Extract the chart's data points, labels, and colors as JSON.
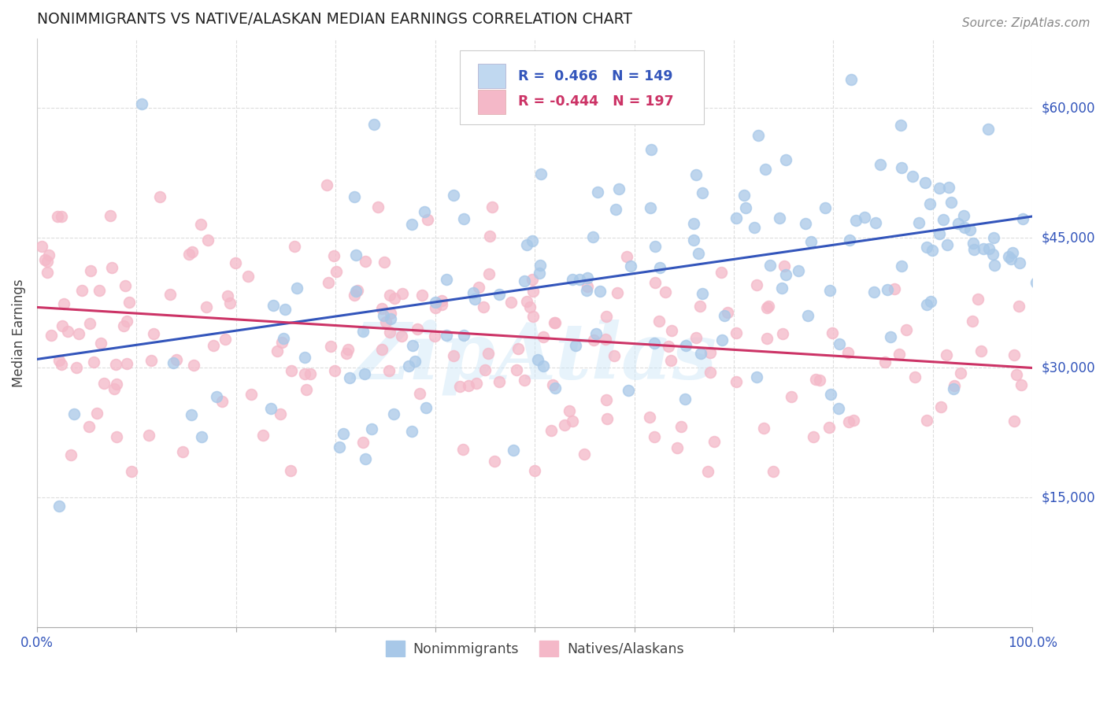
{
  "title": "NONIMMIGRANTS VS NATIVE/ALASKAN MEDIAN EARNINGS CORRELATION CHART",
  "source": "Source: ZipAtlas.com",
  "ylabel": "Median Earnings",
  "xlim": [
    0.0,
    1.0
  ],
  "ylim": [
    0,
    68000
  ],
  "yticks": [
    15000,
    30000,
    45000,
    60000
  ],
  "ytick_labels": [
    "$15,000",
    "$30,000",
    "$45,000",
    "$60,000"
  ],
  "xticks": [
    0.0,
    0.1,
    0.2,
    0.3,
    0.4,
    0.5,
    0.6,
    0.7,
    0.8,
    0.9,
    1.0
  ],
  "xtick_labels": [
    "0.0%",
    "",
    "",
    "",
    "",
    "",
    "",
    "",
    "",
    "",
    "100.0%"
  ],
  "blue_color": "#a8c8e8",
  "pink_color": "#f4b8c8",
  "blue_line_color": "#3355bb",
  "pink_line_color": "#cc3366",
  "title_color": "#222222",
  "axis_label_color": "#444444",
  "tick_color": "#3355bb",
  "legend_box_blue": "#c0d8f0",
  "legend_box_pink": "#f4b8c8",
  "watermark": "ZipAtlas",
  "background_color": "#ffffff",
  "grid_color": "#dddddd",
  "blue_R": 0.466,
  "blue_N": 149,
  "pink_R": -0.444,
  "pink_N": 197,
  "blue_line_x0": 0.0,
  "blue_line_y0": 31000,
  "blue_line_x1": 1.0,
  "blue_line_y1": 47500,
  "pink_line_x0": 0.0,
  "pink_line_y0": 37000,
  "pink_line_x1": 1.0,
  "pink_line_y1": 30000,
  "scatter_marker_size": 100,
  "scatter_lw": 1.2,
  "figsize": [
    14.06,
    8.92
  ],
  "dpi": 100
}
